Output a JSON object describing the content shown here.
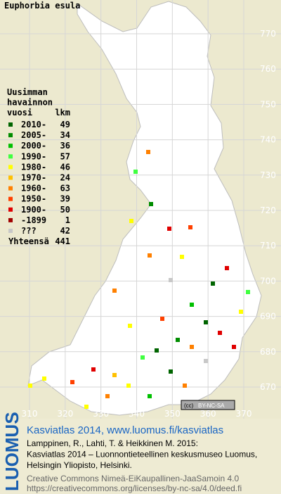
{
  "title": "Euphorbia esula",
  "legend": {
    "heading": [
      "Uusimman",
      "havainnon",
      "vuosi"
    ],
    "count_heading": "lkm",
    "entries": [
      {
        "label": "2010-",
        "count": "49",
        "color": "#006400"
      },
      {
        "label": "2005-",
        "count": "34",
        "color": "#008c00"
      },
      {
        "label": "2000-",
        "count": "36",
        "color": "#00c000"
      },
      {
        "label": "1990-",
        "count": "57",
        "color": "#40ff40"
      },
      {
        "label": "1980-",
        "count": "46",
        "color": "#ffff00"
      },
      {
        "label": "1970-",
        "count": "24",
        "color": "#ffc000"
      },
      {
        "label": "1960-",
        "count": "63",
        "color": "#ff8000"
      },
      {
        "label": "1950-",
        "count": "39",
        "color": "#ff4000"
      },
      {
        "label": "1900-",
        "count": "50",
        "color": "#e00000"
      },
      {
        "label": "-1899",
        "count": "1",
        "color": "#a00000"
      },
      {
        "label": "???",
        "count": "42",
        "color": "#c8c8c8"
      }
    ],
    "total_label": "Yhteensä",
    "total": "441"
  },
  "grid": {
    "y_labels": [
      770,
      760,
      750,
      740,
      730,
      720,
      710,
      700,
      690,
      680,
      670
    ],
    "x_labels": [
      310,
      320,
      330,
      340,
      350,
      360,
      370
    ]
  },
  "badge": "BY-NC-SA",
  "footer": {
    "logo": "LUOMUS",
    "title": "Kasviatlas 2014, www.luomus.fi/kasviatlas",
    "citation": [
      "Lamppinen, R., Lahti, T. & Heikkinen M. 2015:",
      "Kasviatlas 2014 – Luonnontieteellinen keskusmuseo Luomus,",
      "Helsingin Yliopisto, Helsinki."
    ],
    "license": [
      "Creative Commons Nimeä-EiKaupallinen-JaaSamoin 4.0",
      "https://creativecommons.org/licenses/by-nc-sa/4.0/deed.fi"
    ]
  }
}
